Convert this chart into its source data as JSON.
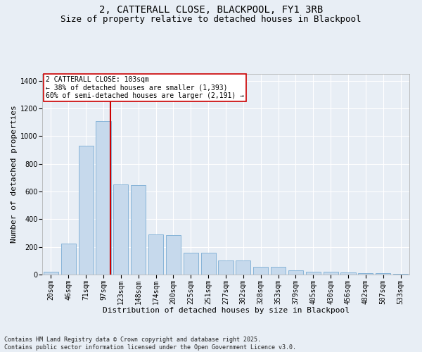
{
  "title_line1": "2, CATTERALL CLOSE, BLACKPOOL, FY1 3RB",
  "title_line2": "Size of property relative to detached houses in Blackpool",
  "xlabel": "Distribution of detached houses by size in Blackpool",
  "ylabel": "Number of detached properties",
  "bar_color": "#c6d9ec",
  "bar_edge_color": "#7aadd4",
  "categories": [
    "20sqm",
    "46sqm",
    "71sqm",
    "97sqm",
    "123sqm",
    "148sqm",
    "174sqm",
    "200sqm",
    "225sqm",
    "251sqm",
    "277sqm",
    "302sqm",
    "328sqm",
    "353sqm",
    "379sqm",
    "405sqm",
    "430sqm",
    "456sqm",
    "482sqm",
    "507sqm",
    "533sqm"
  ],
  "values": [
    18,
    225,
    930,
    1110,
    650,
    645,
    290,
    285,
    160,
    160,
    100,
    100,
    58,
    58,
    28,
    22,
    18,
    14,
    12,
    8,
    4
  ],
  "vline_x": 3.42,
  "vline_color": "#cc0000",
  "annotation_text": "2 CATTERALL CLOSE: 103sqm\n← 38% of detached houses are smaller (1,393)\n60% of semi-detached houses are larger (2,191) →",
  "ylim": [
    0,
    1450
  ],
  "yticks": [
    0,
    200,
    400,
    600,
    800,
    1000,
    1200,
    1400
  ],
  "background_color": "#e8eef5",
  "plot_background": "#e8eef5",
  "footer": "Contains HM Land Registry data © Crown copyright and database right 2025.\nContains public sector information licensed under the Open Government Licence v3.0.",
  "title_fontsize": 10,
  "subtitle_fontsize": 9,
  "xlabel_fontsize": 8,
  "ylabel_fontsize": 8,
  "tick_fontsize": 7,
  "annot_fontsize": 7,
  "footer_fontsize": 6
}
